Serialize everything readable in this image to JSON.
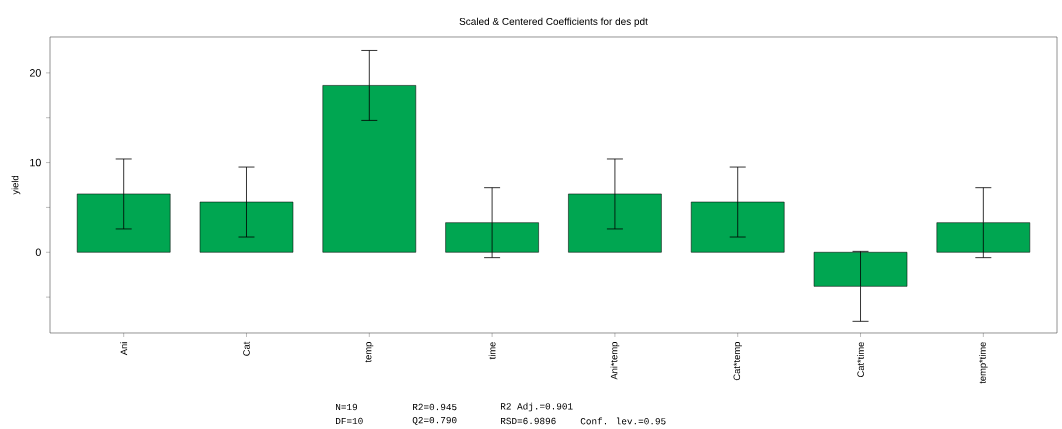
{
  "chart_data": {
    "type": "bar",
    "title": "Scaled & Centered Coefficients for des pdt",
    "ylabel": "yield",
    "categories": [
      "Ani",
      "Cat",
      "temp",
      "time",
      "Ani*temp",
      "Cat*temp",
      "Cat*time",
      "temp*time"
    ],
    "values": [
      6.5,
      5.6,
      18.6,
      3.3,
      6.5,
      5.6,
      -3.8,
      3.3
    ],
    "errors": [
      [
        2.6,
        10.4
      ],
      [
        1.7,
        9.5
      ],
      [
        14.7,
        22.5
      ],
      [
        -0.6,
        7.2
      ],
      [
        2.6,
        10.4
      ],
      [
        1.7,
        9.5
      ],
      [
        -7.7,
        0.1
      ],
      [
        -0.6,
        7.2
      ]
    ],
    "color": "#00a651",
    "ylim": [
      -9,
      24
    ],
    "yticks": [
      {
        "value": -5,
        "label": null
      },
      0,
      {
        "value": 5,
        "label": null
      },
      10,
      {
        "value": 15,
        "label": null
      },
      20
    ],
    "annotations": [
      "N=19",
      "R2=0.945",
      "R2 Adj.=0.901",
      "DF=10",
      "Q2=0.790",
      "RSD=6.9896",
      "Conf. lev.=0.95"
    ],
    "grid": false
  }
}
